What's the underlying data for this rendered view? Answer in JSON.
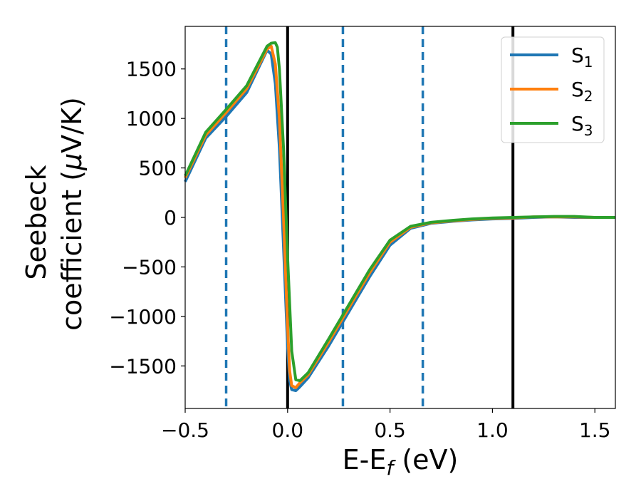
{
  "chart_data": {
    "type": "line",
    "xlabel": {
      "base": "E-E",
      "sub": "f",
      "unit": " (eV)"
    },
    "ylabel": {
      "line1": "Seebeck",
      "line2": "coefficient  (",
      "mu": "μ",
      "unit": "V/K)"
    },
    "xlim": [
      -0.5,
      1.6
    ],
    "ylim": [
      -1930,
      1930
    ],
    "xticks": [
      -0.5,
      0.0,
      0.5,
      1.0,
      1.5
    ],
    "xtick_labels": [
      "−0.5",
      "0.0",
      "0.5",
      "1.0",
      "1.5"
    ],
    "yticks": [
      -1500,
      -1000,
      -500,
      0,
      500,
      1000,
      1500
    ],
    "ytick_labels": [
      "−1500",
      "−1000",
      "−500",
      "0",
      "500",
      "1000",
      "1500"
    ],
    "grid": false,
    "legend_position": "top-right",
    "vlines_dashed": [
      -0.3,
      0.27,
      0.66
    ],
    "vlines_solid": [
      0.0,
      1.1
    ],
    "vline_dashed_color": "#1f77b4",
    "vline_solid_color": "#000000",
    "series": [
      {
        "name": "S",
        "sub": "1",
        "color": "#1f77b4",
        "points": [
          [
            -0.5,
            360
          ],
          [
            -0.4,
            800
          ],
          [
            -0.3,
            1020
          ],
          [
            -0.2,
            1260
          ],
          [
            -0.1,
            1690
          ],
          [
            -0.08,
            1650
          ],
          [
            -0.06,
            1350
          ],
          [
            -0.04,
            700
          ],
          [
            -0.02,
            -300
          ],
          [
            0.0,
            -1300
          ],
          [
            0.01,
            -1650
          ],
          [
            0.02,
            -1740
          ],
          [
            0.04,
            -1750
          ],
          [
            0.06,
            -1710
          ],
          [
            0.1,
            -1620
          ],
          [
            0.2,
            -1300
          ],
          [
            0.3,
            -950
          ],
          [
            0.4,
            -600
          ],
          [
            0.5,
            -280
          ],
          [
            0.6,
            -110
          ],
          [
            0.7,
            -60
          ],
          [
            0.8,
            -40
          ],
          [
            0.9,
            -25
          ],
          [
            1.0,
            -15
          ],
          [
            1.1,
            -10
          ],
          [
            1.2,
            0
          ],
          [
            1.3,
            5
          ],
          [
            1.4,
            0
          ],
          [
            1.5,
            0
          ],
          [
            1.6,
            0
          ]
        ]
      },
      {
        "name": "S",
        "sub": "2",
        "color": "#ff7f0e",
        "points": [
          [
            -0.5,
            400
          ],
          [
            -0.4,
            830
          ],
          [
            -0.3,
            1060
          ],
          [
            -0.2,
            1300
          ],
          [
            -0.1,
            1700
          ],
          [
            -0.08,
            1730
          ],
          [
            -0.06,
            1550
          ],
          [
            -0.04,
            1000
          ],
          [
            -0.02,
            0
          ],
          [
            0.0,
            -1100
          ],
          [
            0.01,
            -1550
          ],
          [
            0.02,
            -1700
          ],
          [
            0.04,
            -1720
          ],
          [
            0.06,
            -1670
          ],
          [
            0.1,
            -1590
          ],
          [
            0.2,
            -1260
          ],
          [
            0.3,
            -910
          ],
          [
            0.4,
            -560
          ],
          [
            0.5,
            -250
          ],
          [
            0.6,
            -100
          ],
          [
            0.7,
            -55
          ],
          [
            0.8,
            -35
          ],
          [
            0.9,
            -20
          ],
          [
            1.0,
            -10
          ],
          [
            1.1,
            -5
          ],
          [
            1.2,
            5
          ],
          [
            1.3,
            5
          ],
          [
            1.4,
            5
          ],
          [
            1.5,
            0
          ],
          [
            1.6,
            0
          ]
        ]
      },
      {
        "name": "S",
        "sub": "3",
        "color": "#2ca02c",
        "points": [
          [
            -0.5,
            420
          ],
          [
            -0.4,
            860
          ],
          [
            -0.3,
            1090
          ],
          [
            -0.2,
            1330
          ],
          [
            -0.1,
            1730
          ],
          [
            -0.08,
            1760
          ],
          [
            -0.06,
            1765
          ],
          [
            -0.05,
            1720
          ],
          [
            -0.04,
            1500
          ],
          [
            -0.02,
            700
          ],
          [
            0.0,
            -400
          ],
          [
            0.02,
            -1350
          ],
          [
            0.04,
            -1640
          ],
          [
            0.06,
            -1650
          ],
          [
            0.1,
            -1570
          ],
          [
            0.2,
            -1230
          ],
          [
            0.3,
            -880
          ],
          [
            0.4,
            -530
          ],
          [
            0.5,
            -230
          ],
          [
            0.6,
            -90
          ],
          [
            0.7,
            -50
          ],
          [
            0.8,
            -30
          ],
          [
            0.9,
            -15
          ],
          [
            1.0,
            -5
          ],
          [
            1.1,
            0
          ],
          [
            1.2,
            5
          ],
          [
            1.3,
            10
          ],
          [
            1.4,
            10
          ],
          [
            1.5,
            0
          ],
          [
            1.6,
            0
          ]
        ]
      }
    ]
  }
}
